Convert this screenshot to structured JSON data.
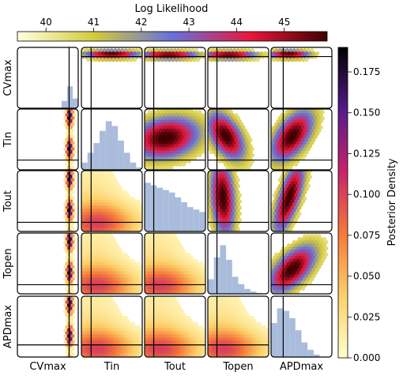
{
  "chart_data": {
    "type": "pair-plot",
    "parameters": [
      "CVmax",
      "Tin",
      "Tout",
      "Topen",
      "APDmax"
    ],
    "upper_triangle": {
      "encoding": "hexbin",
      "colorbar_label": "Log Likelihood",
      "colorbar_ticks": [
        "40",
        "41",
        "42",
        "43",
        "44",
        "45"
      ],
      "colorbar_range": [
        39.4,
        45.9
      ],
      "colors": [
        "#ffffe0",
        "#d4c93a",
        "#6670dd",
        "#e8173a",
        "#400000"
      ]
    },
    "lower_triangle": {
      "encoding": "hexbin",
      "colorbar_label": "Posterior Density",
      "colorbar_ticks": [
        "0.000",
        "0.025",
        "0.050",
        "0.075",
        "0.100",
        "0.125",
        "0.150",
        "0.175"
      ],
      "colorbar_range": [
        0,
        0.19
      ],
      "colors": [
        "#ffffcc",
        "#fcd06a",
        "#f57a3a",
        "#c8246a",
        "#551a8b",
        "#000000"
      ]
    },
    "diagonal": {
      "encoding": "histogram",
      "color": "#a9bcdc",
      "histograms": [
        [
          0,
          0,
          0,
          0,
          0,
          0,
          0,
          0,
          0.15,
          0.45,
          0.2
        ],
        [
          0.15,
          0.35,
          0.55,
          0.8,
          1.0,
          0.9,
          0.6,
          0.35,
          0.15,
          0.05
        ],
        [
          1.0,
          0.95,
          0.9,
          0.85,
          0.8,
          0.7,
          0.6,
          0.5,
          0.45,
          0.4
        ],
        [
          0.3,
          0.75,
          1.0,
          0.7,
          0.35,
          0.2,
          0.1,
          0.05,
          0.02,
          0
        ],
        [
          0.7,
          1.0,
          0.95,
          0.8,
          0.55,
          0.3,
          0.15,
          0.05,
          0,
          0
        ]
      ]
    },
    "true_values": [
      0.85,
      0.16,
      0.15,
      0.15,
      0.2
    ]
  }
}
